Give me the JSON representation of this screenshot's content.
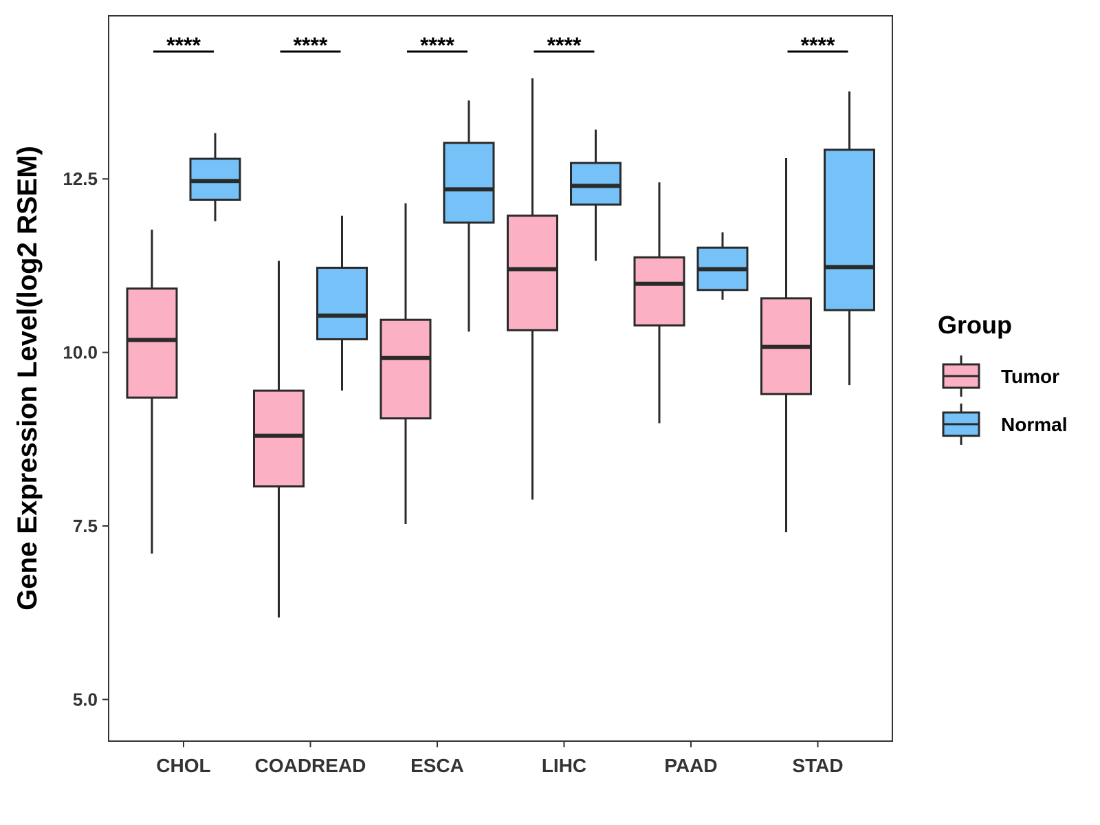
{
  "chart_data": {
    "type": "boxplot",
    "title": "",
    "xlabel": "",
    "ylabel": "Gene Expression Level(log2 RSEM)",
    "ylim": [
      4.4,
      14.85
    ],
    "yticks": [
      5.0,
      7.5,
      10.0,
      12.5
    ],
    "ytick_labels": [
      "5.0",
      "7.5",
      "10.0",
      "12.5"
    ],
    "grid": false,
    "legend_position": "right",
    "categories": [
      "CHOL",
      "COADREAD",
      "ESCA",
      "LIHC",
      "PAAD",
      "STAD"
    ],
    "series": [
      {
        "name": "Tumor",
        "color": "#FBB1C3",
        "boxes": [
          {
            "min": 7.1,
            "q1": 9.35,
            "median": 10.18,
            "q3": 10.92,
            "max": 11.77
          },
          {
            "min": 6.18,
            "q1": 8.07,
            "median": 8.8,
            "q3": 9.45,
            "max": 11.32
          },
          {
            "min": 7.53,
            "q1": 9.05,
            "median": 9.92,
            "q3": 10.47,
            "max": 12.15
          },
          {
            "min": 7.88,
            "q1": 10.32,
            "median": 11.2,
            "q3": 11.97,
            "max": 13.95
          },
          {
            "min": 8.98,
            "q1": 10.39,
            "median": 10.99,
            "q3": 11.37,
            "max": 12.45
          },
          {
            "min": 7.41,
            "q1": 9.4,
            "median": 10.08,
            "q3": 10.78,
            "max": 12.8
          }
        ]
      },
      {
        "name": "Normal",
        "color": "#76C1F7",
        "boxes": [
          {
            "min": 11.89,
            "q1": 12.2,
            "median": 12.47,
            "q3": 12.79,
            "max": 13.16
          },
          {
            "min": 9.45,
            "q1": 10.19,
            "median": 10.53,
            "q3": 11.22,
            "max": 11.97
          },
          {
            "min": 10.3,
            "q1": 11.87,
            "median": 12.35,
            "q3": 13.02,
            "max": 13.63
          },
          {
            "min": 11.32,
            "q1": 12.13,
            "median": 12.4,
            "q3": 12.73,
            "max": 13.21
          },
          {
            "min": 10.76,
            "q1": 10.9,
            "median": 11.2,
            "q3": 11.51,
            "max": 11.73
          },
          {
            "min": 9.53,
            "q1": 10.61,
            "median": 11.23,
            "q3": 12.92,
            "max": 13.76
          }
        ]
      }
    ],
    "significance": [
      {
        "category": "CHOL",
        "label": "****"
      },
      {
        "category": "COADREAD",
        "label": "****"
      },
      {
        "category": "ESCA",
        "label": "****"
      },
      {
        "category": "LIHC",
        "label": "****"
      },
      {
        "category": "PAAD",
        "label": ""
      },
      {
        "category": "STAD",
        "label": "****"
      }
    ],
    "legend": {
      "title": "Group",
      "items": [
        "Tumor",
        "Normal"
      ]
    }
  }
}
